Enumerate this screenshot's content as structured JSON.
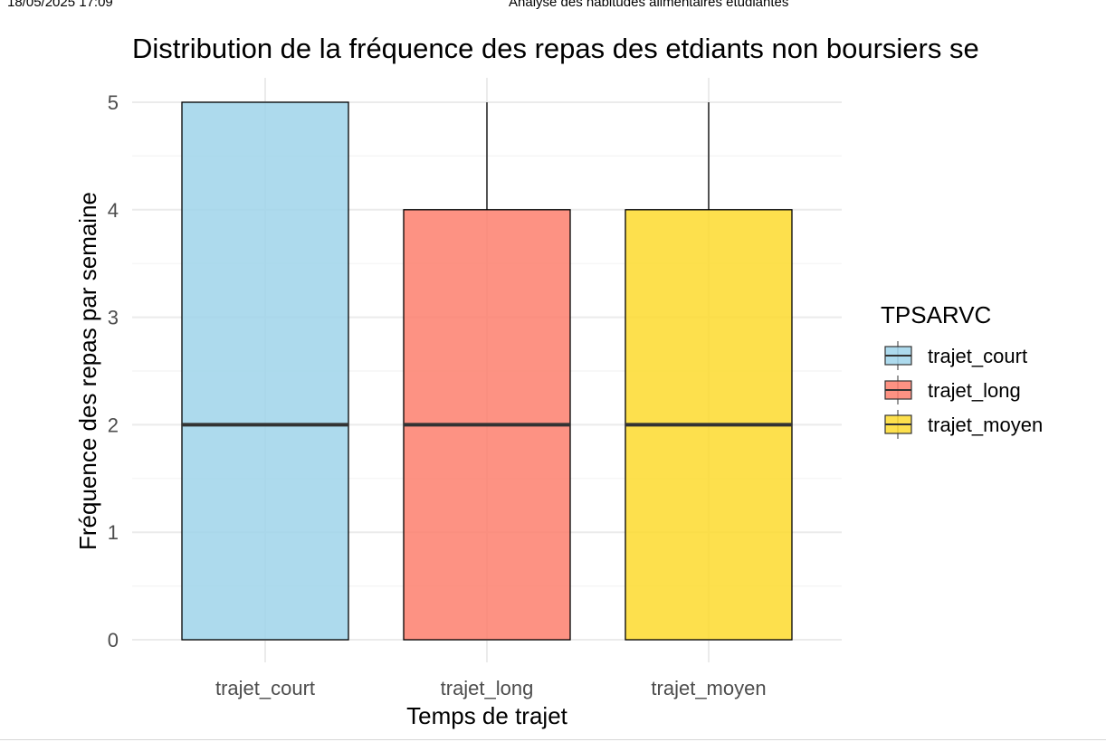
{
  "page_header": {
    "left": "18/05/2025 17:09",
    "center": "Analyse des habitudes alimentaires étudiantes"
  },
  "chart_data": {
    "type": "boxplot",
    "title": "Distribution de la fréquence des repas des etdiants non boursiers se",
    "xlabel": "Temps de trajet",
    "ylabel": "Fréquence des repas par semaine",
    "categories": [
      "trajet_court",
      "trajet_long",
      "trajet_moyen"
    ],
    "series": [
      {
        "category": "trajet_court",
        "q1": 0,
        "median": 2,
        "q3": 5,
        "whisker_low": 0,
        "whisker_high": 5,
        "color": "#9fd3ea"
      },
      {
        "category": "trajet_long",
        "q1": 0,
        "median": 2,
        "q3": 4,
        "whisker_low": 0,
        "whisker_high": 5,
        "color": "#fd7f6d"
      },
      {
        "category": "trajet_moyen",
        "q1": 0,
        "median": 2,
        "q3": 4,
        "whisker_low": 0,
        "whisker_high": 5,
        "color": "#fdda2e"
      }
    ],
    "ylim": [
      0,
      5
    ],
    "yticks": [
      0,
      1,
      2,
      3,
      4,
      5
    ],
    "grid": true,
    "legend": {
      "title": "TPSARVC",
      "position": "right",
      "entries": [
        "trajet_court",
        "trajet_long",
        "trajet_moyen"
      ]
    }
  }
}
